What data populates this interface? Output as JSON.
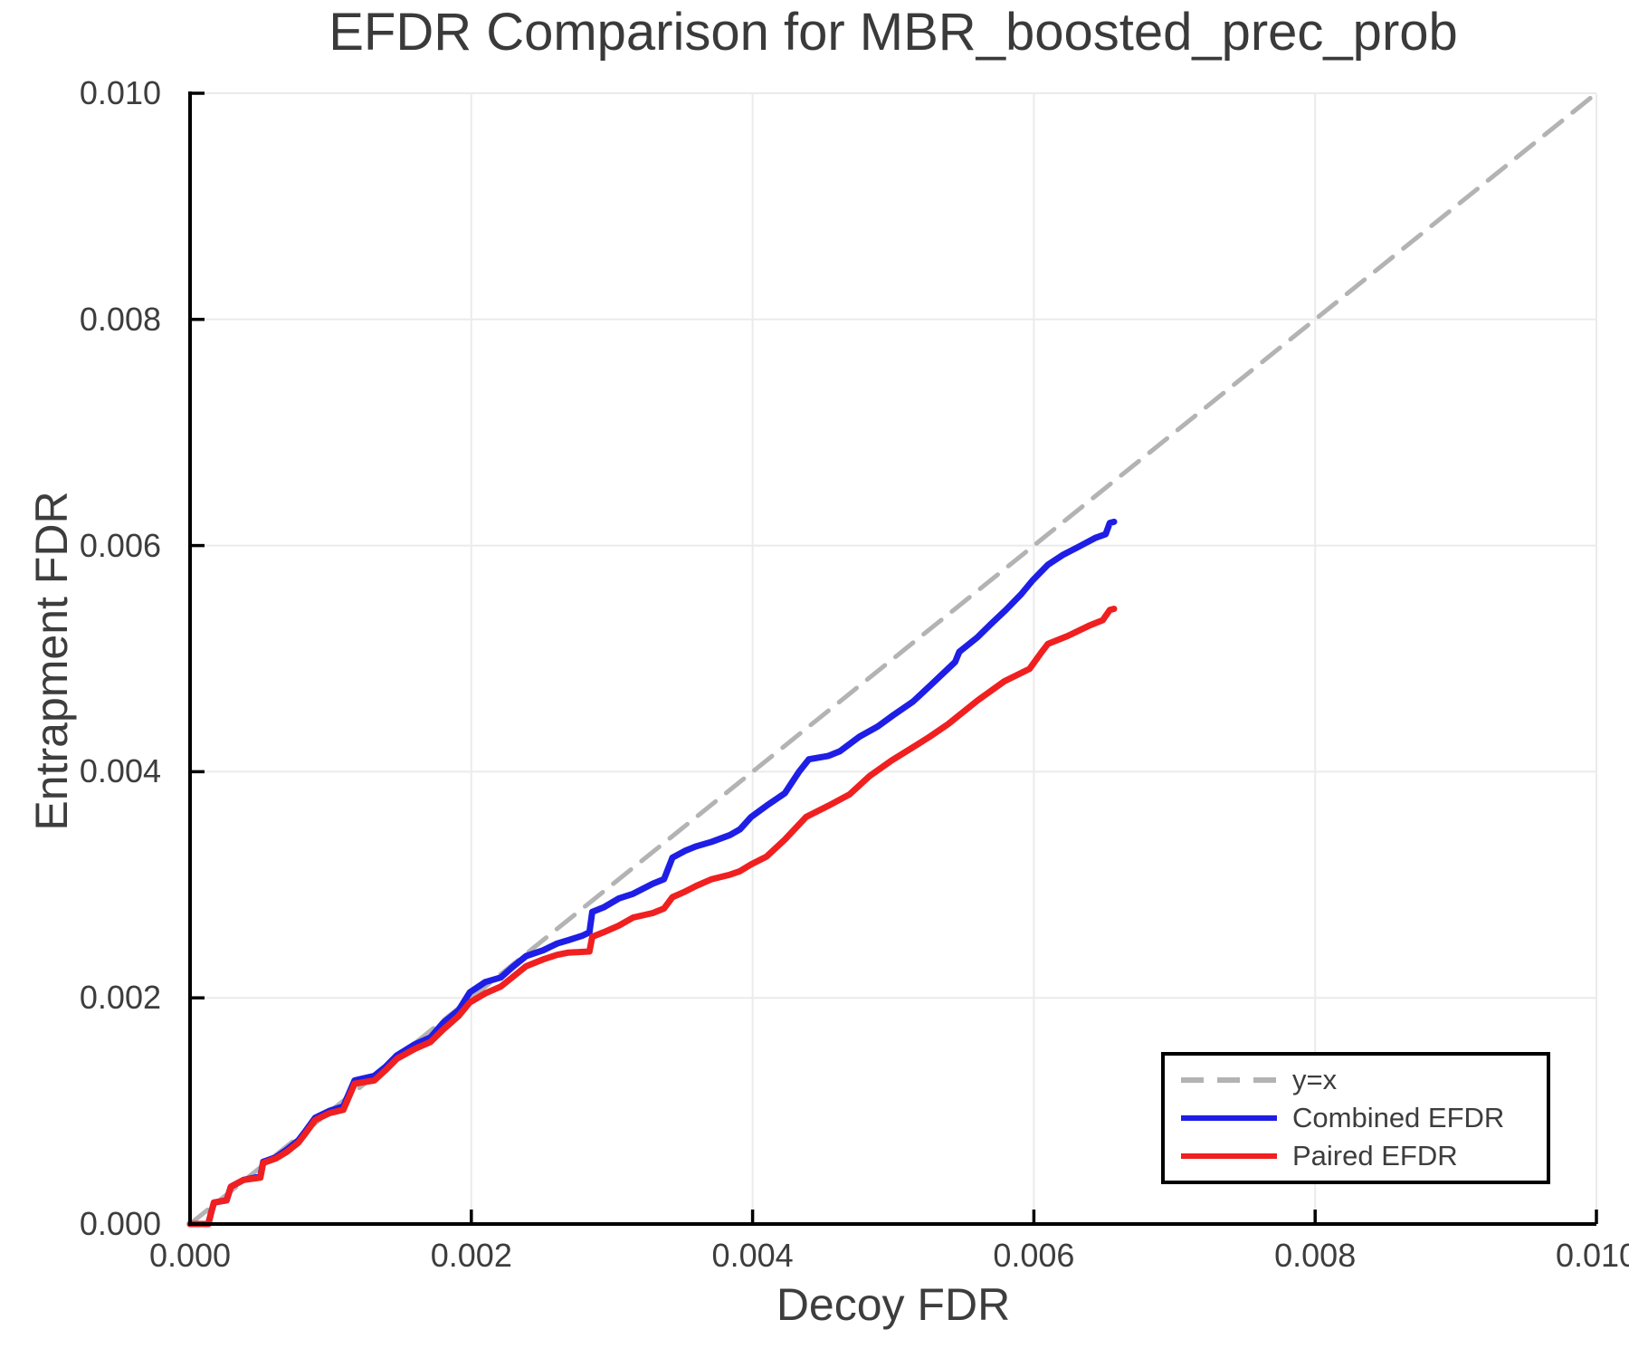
{
  "chart_data": {
    "type": "line",
    "title": "EFDR Comparison for MBR_boosted_prec_prob",
    "xlabel": "Decoy FDR",
    "ylabel": "Entrapment FDR",
    "xlim": [
      0.0,
      0.01
    ],
    "ylim": [
      0.0,
      0.01
    ],
    "xticks": [
      "0.000",
      "0.002",
      "0.004",
      "0.006",
      "0.008",
      "0.010"
    ],
    "yticks": [
      "0.000",
      "0.002",
      "0.004",
      "0.006",
      "0.008",
      "0.010"
    ],
    "grid": true,
    "legend_position": "lower right",
    "colors": {
      "background": "#ffffff",
      "grid": "#ebebeb",
      "axis": "#000000",
      "text": "#3d3d3d"
    },
    "series": [
      {
        "name": "y=x",
        "id": "identity-line",
        "style": "dashed",
        "color": "#b3b3b3",
        "width": 5,
        "points": [
          [
            0.0,
            0.0
          ],
          [
            0.01,
            0.01
          ]
        ]
      },
      {
        "name": "Combined EFDR",
        "id": "combined-efdr-line",
        "style": "solid",
        "color": "#1e1ee6",
        "width": 7,
        "points": [
          [
            0.0,
            0.0
          ],
          [
            0.00013,
            0.0
          ],
          [
            0.00015,
            0.0001
          ],
          [
            0.00017,
            0.00019
          ],
          [
            0.00026,
            0.00021
          ],
          [
            0.00029,
            0.00033
          ],
          [
            0.00038,
            0.00039
          ],
          [
            0.0005,
            0.00042
          ],
          [
            0.00052,
            0.00055
          ],
          [
            0.00061,
            0.00059
          ],
          [
            0.00069,
            0.00066
          ],
          [
            0.00077,
            0.00074
          ],
          [
            0.00082,
            0.00082
          ],
          [
            0.00089,
            0.00094
          ],
          [
            0.00099,
            0.001
          ],
          [
            0.00109,
            0.00104
          ],
          [
            0.00117,
            0.00127
          ],
          [
            0.00131,
            0.00131
          ],
          [
            0.00139,
            0.00139
          ],
          [
            0.00147,
            0.00149
          ],
          [
            0.0016,
            0.00159
          ],
          [
            0.00171,
            0.00165
          ],
          [
            0.0018,
            0.00178
          ],
          [
            0.00191,
            0.00189
          ],
          [
            0.00199,
            0.00205
          ],
          [
            0.0021,
            0.00214
          ],
          [
            0.00221,
            0.00218
          ],
          [
            0.00229,
            0.00227
          ],
          [
            0.00239,
            0.00237
          ],
          [
            0.00251,
            0.00242
          ],
          [
            0.00261,
            0.00248
          ],
          [
            0.00269,
            0.00251
          ],
          [
            0.00279,
            0.00255
          ],
          [
            0.00284,
            0.00258
          ],
          [
            0.00286,
            0.00276
          ],
          [
            0.00294,
            0.0028
          ],
          [
            0.00305,
            0.00288
          ],
          [
            0.00315,
            0.00292
          ],
          [
            0.00329,
            0.00301
          ],
          [
            0.00337,
            0.00305
          ],
          [
            0.00343,
            0.00324
          ],
          [
            0.00352,
            0.0033
          ],
          [
            0.0036,
            0.00334
          ],
          [
            0.00371,
            0.00338
          ],
          [
            0.00384,
            0.00344
          ],
          [
            0.00391,
            0.00349
          ],
          [
            0.00399,
            0.0036
          ],
          [
            0.0041,
            0.0037
          ],
          [
            0.00423,
            0.00381
          ],
          [
            0.00433,
            0.004
          ],
          [
            0.0044,
            0.00411
          ],
          [
            0.00454,
            0.00414
          ],
          [
            0.00462,
            0.00418
          ],
          [
            0.00476,
            0.00431
          ],
          [
            0.00489,
            0.0044
          ],
          [
            0.005,
            0.0045
          ],
          [
            0.00514,
            0.00462
          ],
          [
            0.00527,
            0.00477
          ],
          [
            0.00544,
            0.00497
          ],
          [
            0.00547,
            0.00506
          ],
          [
            0.0056,
            0.00519
          ],
          [
            0.00569,
            0.0053
          ],
          [
            0.0058,
            0.00543
          ],
          [
            0.00591,
            0.00557
          ],
          [
            0.00599,
            0.00569
          ],
          [
            0.0061,
            0.00583
          ],
          [
            0.00621,
            0.00592
          ],
          [
            0.00632,
            0.00599
          ],
          [
            0.00644,
            0.00607
          ],
          [
            0.00651,
            0.0061
          ],
          [
            0.00654,
            0.0062
          ],
          [
            0.00657,
            0.00621
          ]
        ]
      },
      {
        "name": "Paired EFDR",
        "id": "paired-efdr-line",
        "style": "solid",
        "color": "#f02020",
        "width": 7,
        "points": [
          [
            0.0,
            0.0
          ],
          [
            0.00013,
            0.0
          ],
          [
            0.00015,
            0.0001
          ],
          [
            0.00017,
            0.00019
          ],
          [
            0.00026,
            0.00021
          ],
          [
            0.00029,
            0.00033
          ],
          [
            0.00038,
            0.00039
          ],
          [
            0.0005,
            0.00041
          ],
          [
            0.00052,
            0.00054
          ],
          [
            0.00061,
            0.00058
          ],
          [
            0.00069,
            0.00064
          ],
          [
            0.00077,
            0.00072
          ],
          [
            0.00082,
            0.0008
          ],
          [
            0.00089,
            0.00092
          ],
          [
            0.00099,
            0.00098
          ],
          [
            0.00109,
            0.00101
          ],
          [
            0.00117,
            0.00124
          ],
          [
            0.00131,
            0.00127
          ],
          [
            0.00139,
            0.00136
          ],
          [
            0.00147,
            0.00146
          ],
          [
            0.0016,
            0.00155
          ],
          [
            0.00171,
            0.00161
          ],
          [
            0.0018,
            0.00172
          ],
          [
            0.00191,
            0.00184
          ],
          [
            0.00199,
            0.00196
          ],
          [
            0.0021,
            0.00204
          ],
          [
            0.00221,
            0.0021
          ],
          [
            0.00229,
            0.00218
          ],
          [
            0.00239,
            0.00228
          ],
          [
            0.00251,
            0.00234
          ],
          [
            0.00261,
            0.00238
          ],
          [
            0.00269,
            0.0024
          ],
          [
            0.00284,
            0.00241
          ],
          [
            0.00286,
            0.00254
          ],
          [
            0.00294,
            0.00258
          ],
          [
            0.00305,
            0.00264
          ],
          [
            0.00315,
            0.00271
          ],
          [
            0.00329,
            0.00275
          ],
          [
            0.00337,
            0.00279
          ],
          [
            0.00343,
            0.00289
          ],
          [
            0.00352,
            0.00294
          ],
          [
            0.0036,
            0.00299
          ],
          [
            0.00371,
            0.00305
          ],
          [
            0.00384,
            0.00309
          ],
          [
            0.00391,
            0.00312
          ],
          [
            0.00399,
            0.00318
          ],
          [
            0.0041,
            0.00325
          ],
          [
            0.00423,
            0.0034
          ],
          [
            0.00438,
            0.0036
          ],
          [
            0.00454,
            0.0037
          ],
          [
            0.00469,
            0.0038
          ],
          [
            0.00483,
            0.00396
          ],
          [
            0.00499,
            0.0041
          ],
          [
            0.00512,
            0.0042
          ],
          [
            0.00526,
            0.00431
          ],
          [
            0.00539,
            0.00442
          ],
          [
            0.0056,
            0.00463
          ],
          [
            0.00579,
            0.0048
          ],
          [
            0.00597,
            0.00491
          ],
          [
            0.00605,
            0.00505
          ],
          [
            0.0061,
            0.00513
          ],
          [
            0.00624,
            0.0052
          ],
          [
            0.00639,
            0.00529
          ],
          [
            0.00649,
            0.00534
          ],
          [
            0.00654,
            0.00543
          ],
          [
            0.00657,
            0.00544
          ]
        ]
      }
    ]
  }
}
